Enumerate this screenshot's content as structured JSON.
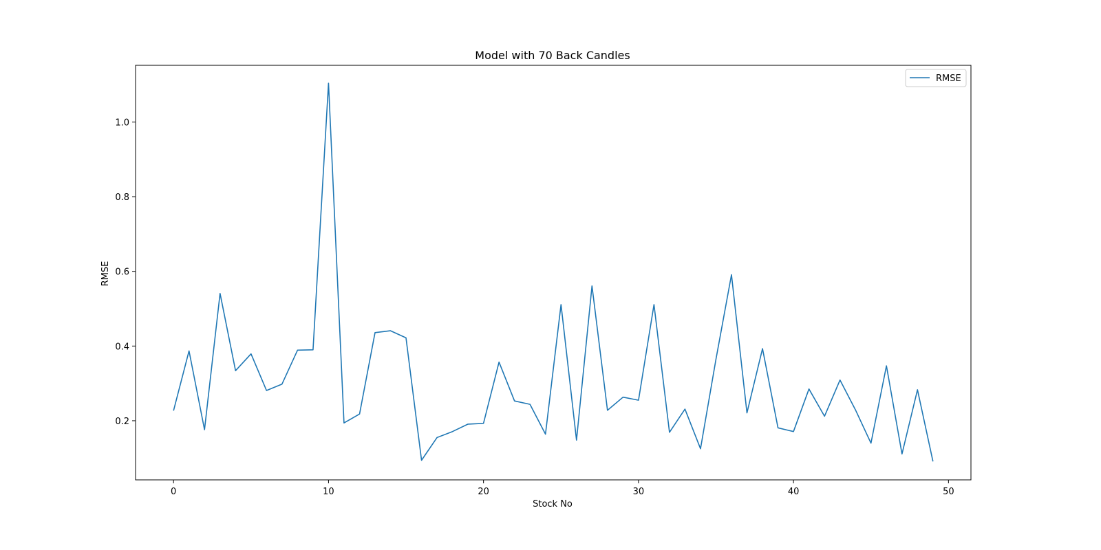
{
  "chart_data": {
    "type": "line",
    "title": "Model with 70 Back Candles",
    "xlabel": "Stock No",
    "ylabel": "RMSE",
    "xlim": [
      -2.45,
      51.45
    ],
    "ylim": [
      0.0416,
      1.1518
    ],
    "x_ticks": [
      0,
      10,
      20,
      30,
      40,
      50
    ],
    "y_ticks": [
      0.2,
      0.4,
      0.6,
      0.8,
      1.0
    ],
    "x_tick_labels": [
      "0",
      "10",
      "20",
      "30",
      "40",
      "50"
    ],
    "y_tick_labels": [
      "0.2",
      "0.4",
      "0.6",
      "0.8",
      "1.0"
    ],
    "grid": false,
    "legend_position": "top-right",
    "series": [
      {
        "name": "RMSE",
        "color": "#1f77b4",
        "x": [
          0,
          1,
          2,
          3,
          4,
          5,
          6,
          7,
          8,
          9,
          10,
          11,
          12,
          13,
          14,
          15,
          16,
          17,
          18,
          19,
          20,
          21,
          22,
          23,
          24,
          25,
          26,
          27,
          28,
          29,
          30,
          31,
          32,
          33,
          34,
          35,
          36,
          37,
          38,
          39,
          40,
          41,
          42,
          43,
          44,
          45,
          46,
          47,
          48,
          49
        ],
        "values": [
          0.227,
          0.387,
          0.176,
          0.541,
          0.334,
          0.379,
          0.281,
          0.298,
          0.389,
          0.39,
          1.104,
          0.194,
          0.218,
          0.436,
          0.441,
          0.422,
          0.094,
          0.155,
          0.171,
          0.191,
          0.193,
          0.357,
          0.253,
          0.244,
          0.164,
          0.511,
          0.148,
          0.561,
          0.228,
          0.263,
          0.255,
          0.511,
          0.169,
          0.231,
          0.125,
          0.365,
          0.591,
          0.221,
          0.393,
          0.181,
          0.171,
          0.285,
          0.212,
          0.309,
          0.229,
          0.14,
          0.347,
          0.111,
          0.283,
          0.091
        ]
      }
    ]
  }
}
